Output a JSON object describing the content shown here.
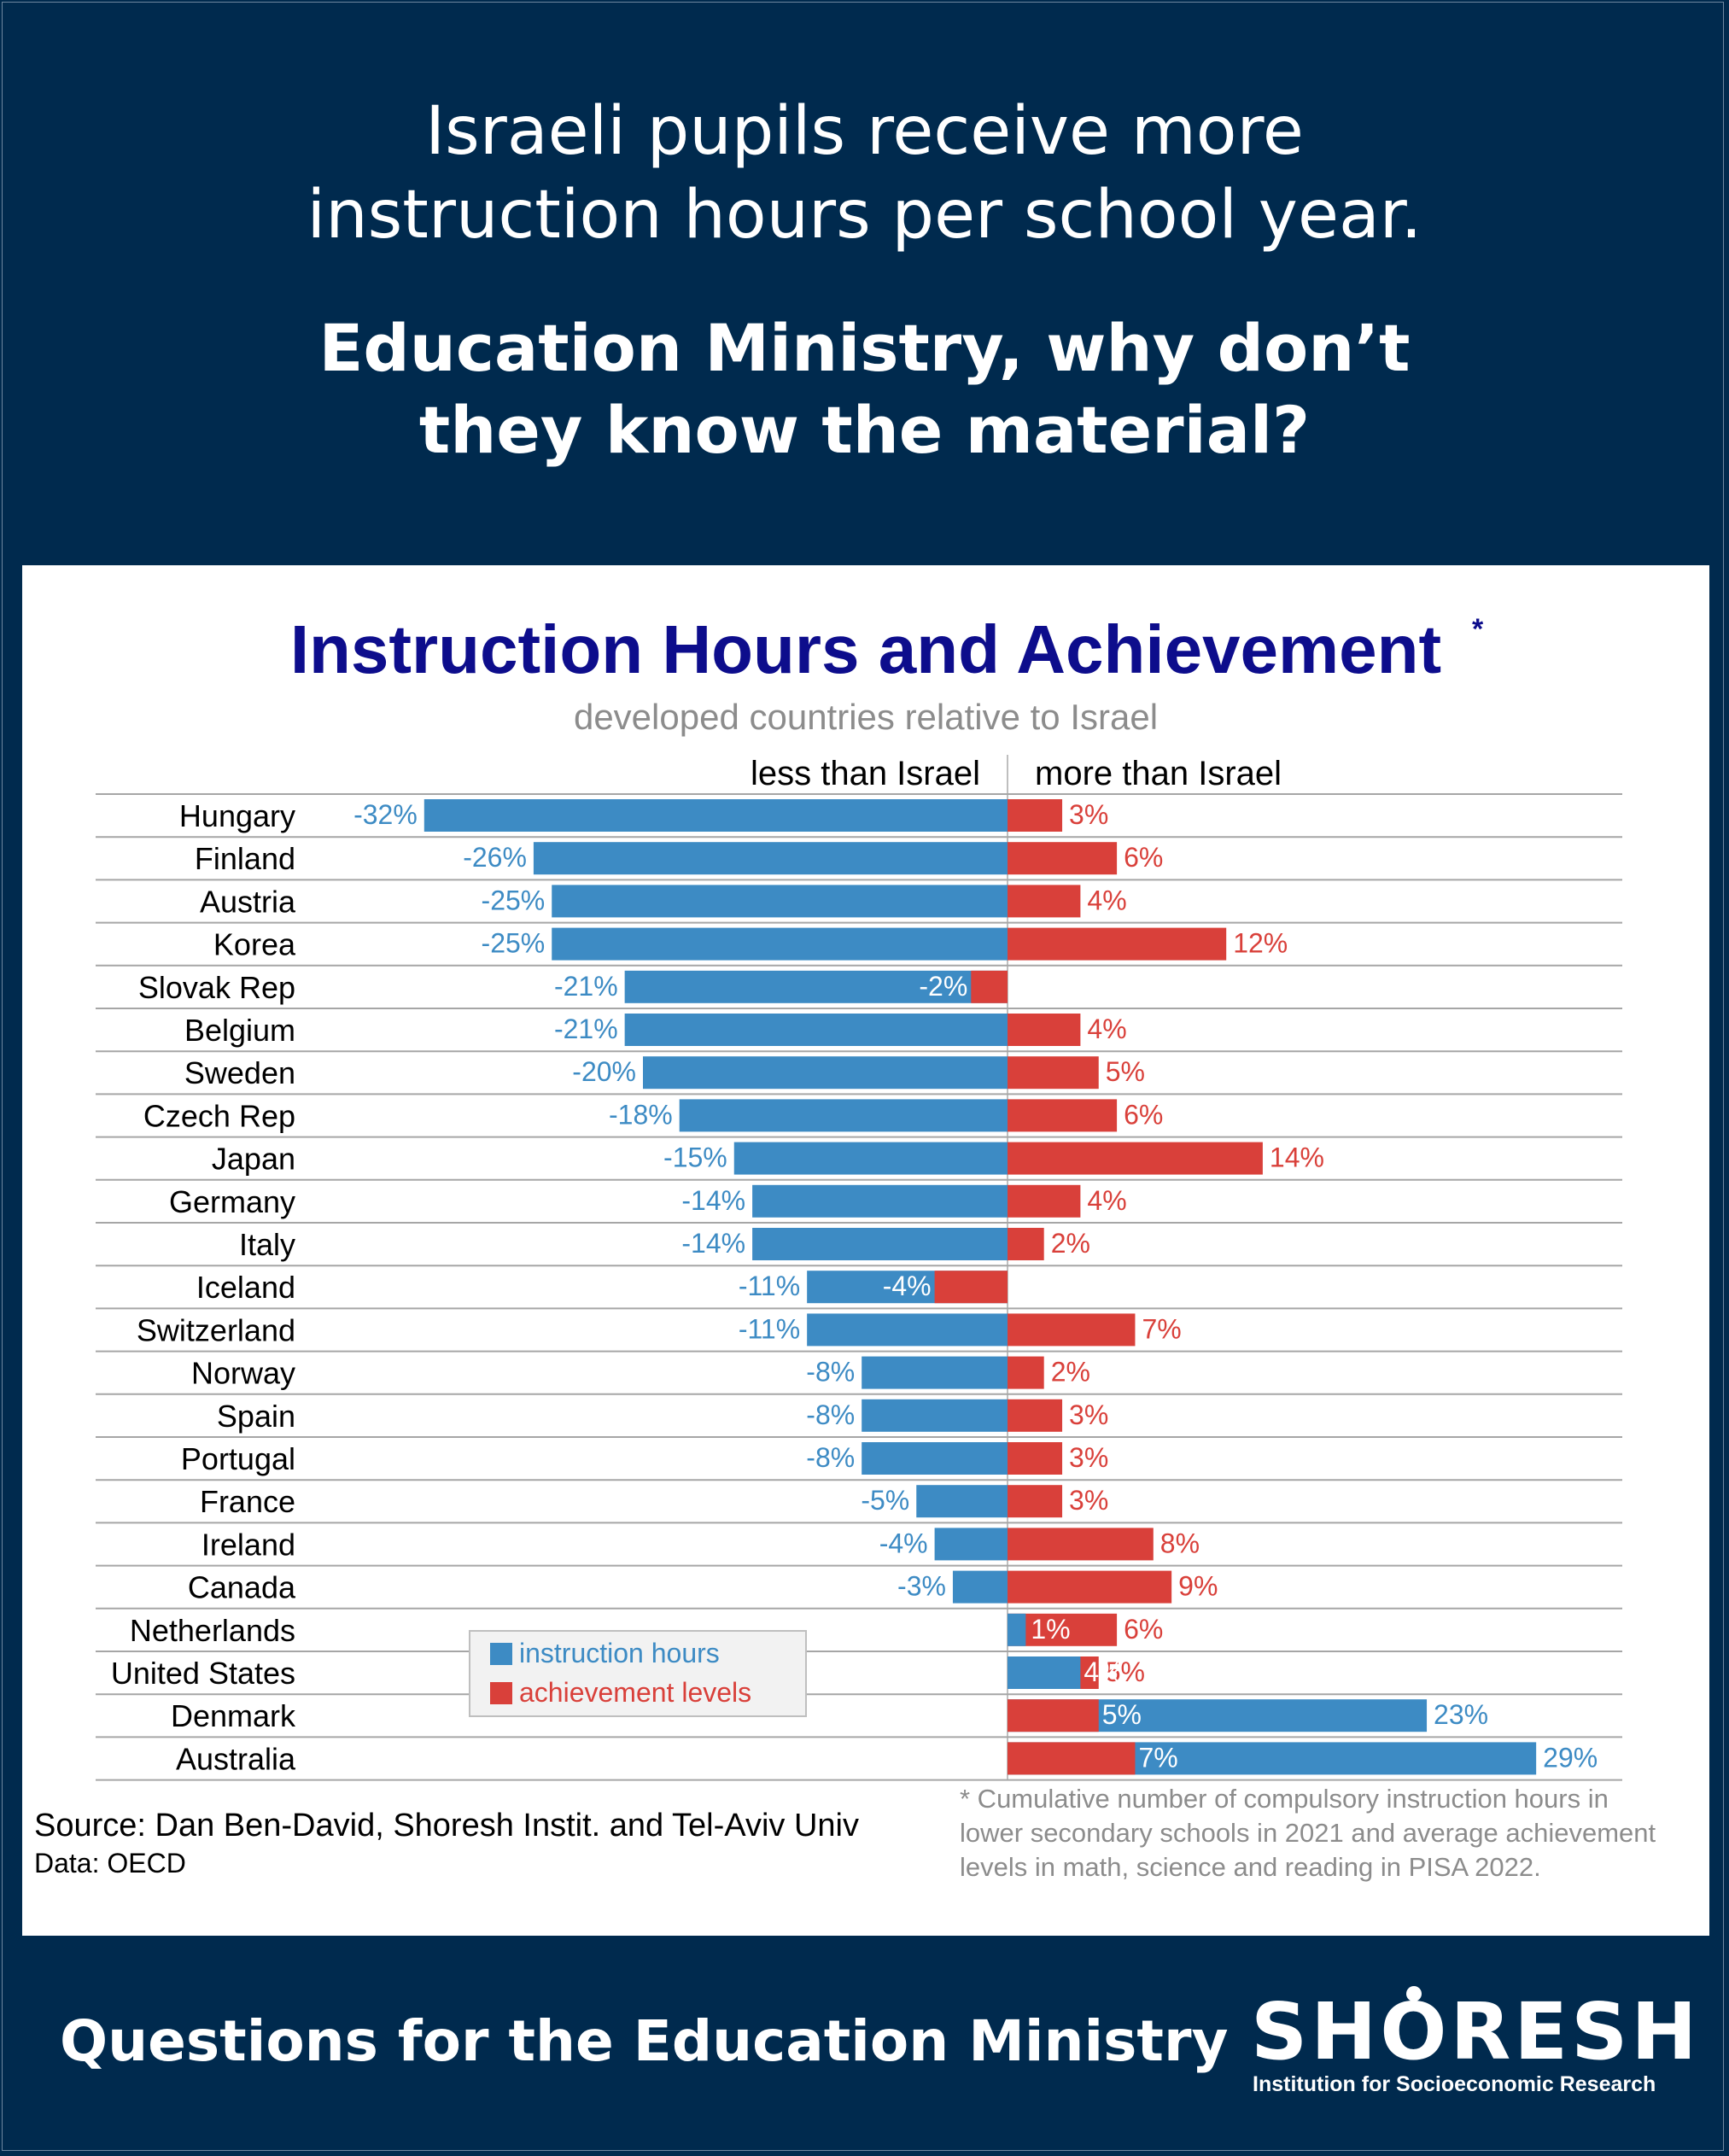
{
  "header": {
    "line1": "Israeli pupils receive more",
    "line2": "instruction hours per school year.",
    "question1": "Education Ministry, why don’t",
    "question2": "they know the material?"
  },
  "footer": {
    "title": "Questions for the Education Ministry",
    "logo": "SHORESH",
    "logo_sub": "Institution for Socioeconomic Research"
  },
  "colors": {
    "background": "#002a4e",
    "instruction": "#3d8bc4",
    "achievement": "#d9403a",
    "title": "#0d0d8c"
  },
  "chart_data": {
    "type": "bar",
    "orientation": "horizontal",
    "title": "Instruction Hours and Achievement",
    "title_mark": "*",
    "subtitle": "developed countries relative to Israel",
    "left_header": "less than Israel",
    "right_header": "more than Israel",
    "categories": [
      "Hungary",
      "Finland",
      "Austria",
      "Korea",
      "Slovak Rep",
      "Belgium",
      "Sweden",
      "Czech Rep",
      "Japan",
      "Germany",
      "Italy",
      "Iceland",
      "Switzerland",
      "Norway",
      "Spain",
      "Portugal",
      "France",
      "Ireland",
      "Canada",
      "Netherlands",
      "United States",
      "Denmark",
      "Australia"
    ],
    "series": [
      {
        "name": "instruction hours",
        "color": "#3d8bc4",
        "values": [
          -32,
          -26,
          -25,
          -25,
          -21,
          -21,
          -20,
          -18,
          -15,
          -14,
          -14,
          -11,
          -11,
          -8,
          -8,
          -8,
          -5,
          -4,
          -3,
          1,
          4,
          23,
          29
        ]
      },
      {
        "name": "achievement levels",
        "color": "#d9403a",
        "values": [
          3,
          6,
          4,
          12,
          -2,
          4,
          5,
          6,
          14,
          4,
          2,
          -4,
          7,
          2,
          3,
          3,
          3,
          8,
          9,
          6,
          5,
          5,
          7
        ]
      }
    ],
    "unit": "%",
    "legend_position": "lower-left",
    "source": "Source: Dan Ben-David, Shoresh Instit. and Tel-Aviv Univ",
    "data_note": "Data: OECD",
    "footnote": "* Cumulative number of compulsory instruction hours in lower secondary schools in 2021 and average achievement levels in math, science and reading in PISA 2022."
  }
}
